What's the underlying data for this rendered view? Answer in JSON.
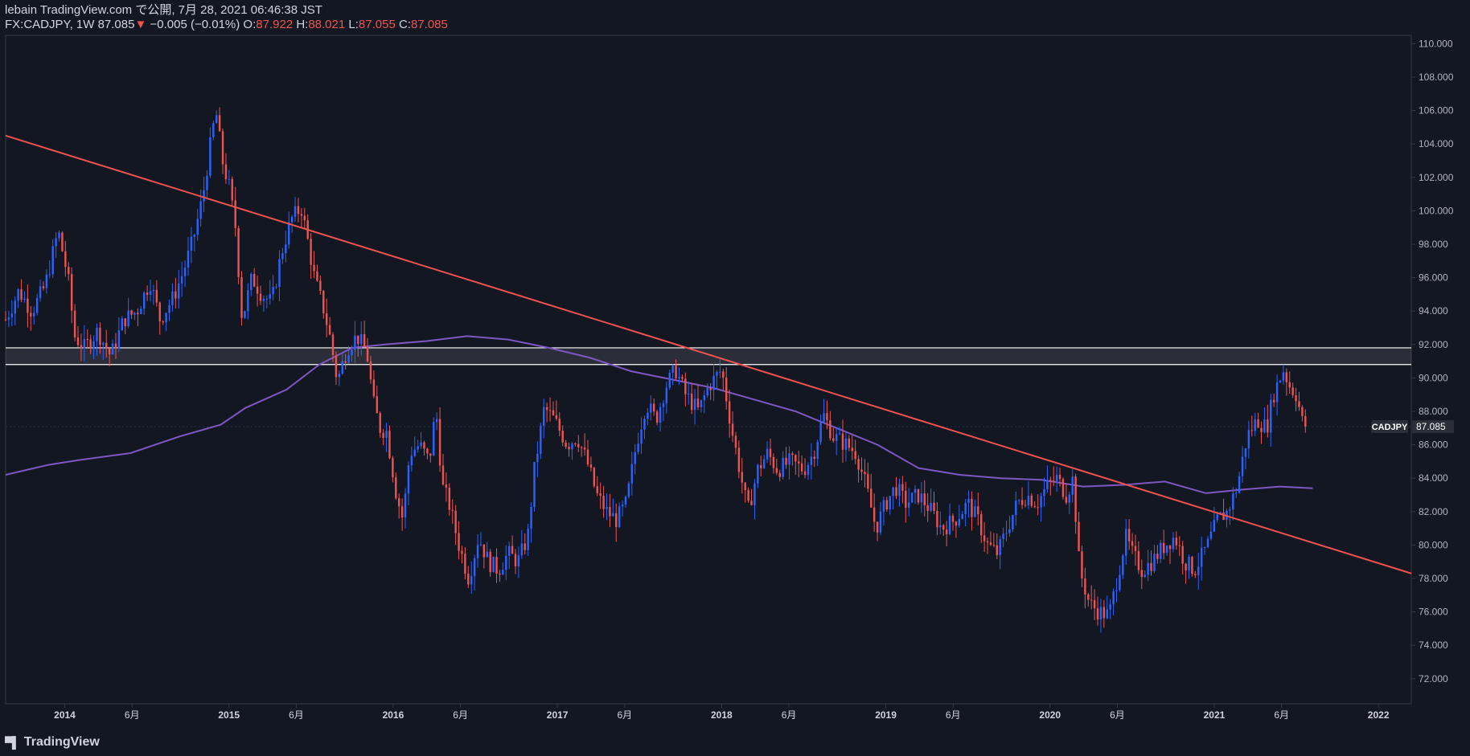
{
  "header": {
    "published": "lebain TradingView.com で公開, 7月 28, 2021 06:46:38 JST",
    "symbol_line": "FX:CADJPY, 1W 87.085",
    "change": "−0.005 (−0.01%)",
    "o_label": "O:",
    "o_value": "87.922",
    "h_label": "H:",
    "h_value": "88.021",
    "l_label": "L:",
    "l_value": "87.055",
    "c_label": "C:",
    "c_value": "87.085"
  },
  "footer": {
    "logo_text": "TradingView"
  },
  "colors": {
    "background": "#131722",
    "up": "#2962ff",
    "down": "#ef5350",
    "trendline": "#f0524f",
    "ma": "#7e57c2",
    "zone": "#ffffff"
  },
  "chart_data": {
    "type": "candlestick",
    "symbol": "CADJPY",
    "last_price_label": "87.085",
    "y_range": [
      70.5,
      110.5
    ],
    "y_ticks": [
      "110.000",
      "108.000",
      "106.000",
      "104.000",
      "102.000",
      "100.000",
      "98.000",
      "96.000",
      "94.000",
      "92.000",
      "90.000",
      "88.000",
      "86.000",
      "84.000",
      "82.000",
      "80.000",
      "78.000",
      "76.000",
      "74.000",
      "72.000"
    ],
    "x_ticks": [
      {
        "label": "2014",
        "t": 2014.0
      },
      {
        "label": "6月",
        "t": 2014.41
      },
      {
        "label": "2015",
        "t": 2015.0
      },
      {
        "label": "6月",
        "t": 2015.41
      },
      {
        "label": "2016",
        "t": 2016.0
      },
      {
        "label": "6月",
        "t": 2016.41
      },
      {
        "label": "2017",
        "t": 2017.0
      },
      {
        "label": "6月",
        "t": 2017.41
      },
      {
        "label": "2018",
        "t": 2018.0
      },
      {
        "label": "6月",
        "t": 2018.41
      },
      {
        "label": "2019",
        "t": 2019.0
      },
      {
        "label": "6月",
        "t": 2019.41
      },
      {
        "label": "2020",
        "t": 2020.0
      },
      {
        "label": "6月",
        "t": 2020.41
      },
      {
        "label": "2021",
        "t": 2021.0
      },
      {
        "label": "6月",
        "t": 2021.41
      },
      {
        "label": "2022",
        "t": 2022.0
      }
    ],
    "x_range": [
      2013.64,
      2022.2
    ],
    "price_path": [
      [
        2013.64,
        93.5
      ],
      [
        2013.72,
        95.2
      ],
      [
        2013.8,
        94.0
      ],
      [
        2013.88,
        95.5
      ],
      [
        2013.96,
        98.8
      ],
      [
        2014.02,
        96.0
      ],
      [
        2014.06,
        92.5
      ],
      [
        2014.12,
        91.8
      ],
      [
        2014.2,
        92.8
      ],
      [
        2014.28,
        91.3
      ],
      [
        2014.36,
        93.5
      ],
      [
        2014.44,
        94.0
      ],
      [
        2014.52,
        95.8
      ],
      [
        2014.58,
        93.5
      ],
      [
        2014.66,
        94.8
      ],
      [
        2014.72,
        96.3
      ],
      [
        2014.78,
        98.2
      ],
      [
        2014.84,
        100.8
      ],
      [
        2014.88,
        103.5
      ],
      [
        2014.92,
        106.0
      ],
      [
        2014.96,
        103.0
      ],
      [
        2015.0,
        101.5
      ],
      [
        2015.04,
        99.0
      ],
      [
        2015.08,
        93.5
      ],
      [
        2015.14,
        96.0
      ],
      [
        2015.2,
        95.0
      ],
      [
        2015.26,
        94.5
      ],
      [
        2015.32,
        97.5
      ],
      [
        2015.38,
        99.5
      ],
      [
        2015.44,
        100.2
      ],
      [
        2015.48,
        98.2
      ],
      [
        2015.52,
        96.0
      ],
      [
        2015.58,
        94.0
      ],
      [
        2015.62,
        92.2
      ],
      [
        2015.66,
        89.8
      ],
      [
        2015.72,
        91.8
      ],
      [
        2015.78,
        92.5
      ],
      [
        2015.84,
        91.5
      ],
      [
        2015.88,
        88.5
      ],
      [
        2015.92,
        87.0
      ],
      [
        2015.96,
        86.8
      ],
      [
        2016.02,
        83.0
      ],
      [
        2016.06,
        81.5
      ],
      [
        2016.1,
        85.5
      ],
      [
        2016.16,
        86.0
      ],
      [
        2016.22,
        85.0
      ],
      [
        2016.26,
        88.2
      ],
      [
        2016.3,
        83.5
      ],
      [
        2016.34,
        82.5
      ],
      [
        2016.4,
        80.0
      ],
      [
        2016.46,
        78.0
      ],
      [
        2016.52,
        80.5
      ],
      [
        2016.58,
        79.0
      ],
      [
        2016.64,
        78.5
      ],
      [
        2016.7,
        79.5
      ],
      [
        2016.76,
        79.0
      ],
      [
        2016.82,
        80.5
      ],
      [
        2016.86,
        84.5
      ],
      [
        2016.92,
        88.2
      ],
      [
        2016.98,
        87.5
      ],
      [
        2017.06,
        86.0
      ],
      [
        2017.12,
        86.5
      ],
      [
        2017.18,
        85.0
      ],
      [
        2017.24,
        83.0
      ],
      [
        2017.3,
        82.0
      ],
      [
        2017.36,
        81.5
      ],
      [
        2017.42,
        82.5
      ],
      [
        2017.48,
        86.0
      ],
      [
        2017.54,
        88.5
      ],
      [
        2017.6,
        87.5
      ],
      [
        2017.66,
        89.5
      ],
      [
        2017.72,
        90.5
      ],
      [
        2017.78,
        89.0
      ],
      [
        2017.86,
        88.0
      ],
      [
        2017.92,
        89.5
      ],
      [
        2018.0,
        90.5
      ],
      [
        2018.06,
        87.0
      ],
      [
        2018.12,
        84.0
      ],
      [
        2018.16,
        82.0
      ],
      [
        2018.22,
        84.5
      ],
      [
        2018.28,
        85.5
      ],
      [
        2018.34,
        84.5
      ],
      [
        2018.42,
        85.0
      ],
      [
        2018.5,
        84.5
      ],
      [
        2018.56,
        85.5
      ],
      [
        2018.62,
        87.8
      ],
      [
        2018.68,
        86.5
      ],
      [
        2018.76,
        86.0
      ],
      [
        2018.82,
        85.5
      ],
      [
        2018.88,
        83.5
      ],
      [
        2018.94,
        81.0
      ],
      [
        2019.0,
        82.5
      ],
      [
        2019.06,
        83.5
      ],
      [
        2019.12,
        82.5
      ],
      [
        2019.2,
        83.0
      ],
      [
        2019.28,
        82.0
      ],
      [
        2019.34,
        81.0
      ],
      [
        2019.42,
        81.5
      ],
      [
        2019.5,
        82.5
      ],
      [
        2019.56,
        81.5
      ],
      [
        2019.62,
        80.0
      ],
      [
        2019.68,
        79.5
      ],
      [
        2019.74,
        81.0
      ],
      [
        2019.8,
        82.5
      ],
      [
        2019.86,
        83.0
      ],
      [
        2019.92,
        82.5
      ],
      [
        2019.98,
        83.5
      ],
      [
        2020.04,
        84.0
      ],
      [
        2020.1,
        83.0
      ],
      [
        2020.14,
        84.0
      ],
      [
        2020.18,
        78.5
      ],
      [
        2020.24,
        76.5
      ],
      [
        2020.3,
        76.0
      ],
      [
        2020.36,
        75.8
      ],
      [
        2020.42,
        78.5
      ],
      [
        2020.46,
        80.5
      ],
      [
        2020.5,
        79.5
      ],
      [
        2020.56,
        78.5
      ],
      [
        2020.62,
        79.0
      ],
      [
        2020.7,
        80.0
      ],
      [
        2020.76,
        80.5
      ],
      [
        2020.82,
        79.0
      ],
      [
        2020.88,
        78.5
      ],
      [
        2020.96,
        80.0
      ],
      [
        2021.02,
        81.5
      ],
      [
        2021.08,
        82.0
      ],
      [
        2021.14,
        83.5
      ],
      [
        2021.2,
        86.5
      ],
      [
        2021.26,
        87.5
      ],
      [
        2021.32,
        87.0
      ],
      [
        2021.36,
        89.0
      ],
      [
        2021.42,
        90.5
      ],
      [
        2021.46,
        89.5
      ],
      [
        2021.5,
        89.0
      ],
      [
        2021.54,
        87.2
      ],
      [
        2021.57,
        87.1
      ]
    ],
    "trendline": [
      [
        2013.64,
        104.5
      ],
      [
        2022.2,
        78.3
      ]
    ],
    "resistance_zone": [
      90.8,
      91.8
    ],
    "moving_average": [
      [
        2013.64,
        84.2
      ],
      [
        2013.9,
        84.8
      ],
      [
        2014.1,
        85.1
      ],
      [
        2014.4,
        85.5
      ],
      [
        2014.7,
        86.5
      ],
      [
        2014.95,
        87.2
      ],
      [
        2015.1,
        88.2
      ],
      [
        2015.35,
        89.3
      ],
      [
        2015.55,
        90.8
      ],
      [
        2015.75,
        91.8
      ],
      [
        2015.95,
        92.0
      ],
      [
        2016.2,
        92.2
      ],
      [
        2016.45,
        92.5
      ],
      [
        2016.7,
        92.3
      ],
      [
        2016.95,
        91.8
      ],
      [
        2017.2,
        91.2
      ],
      [
        2017.45,
        90.4
      ],
      [
        2017.7,
        89.9
      ],
      [
        2017.95,
        89.4
      ],
      [
        2018.2,
        88.7
      ],
      [
        2018.45,
        88.0
      ],
      [
        2018.7,
        87.0
      ],
      [
        2018.95,
        86.0
      ],
      [
        2019.2,
        84.6
      ],
      [
        2019.45,
        84.2
      ],
      [
        2019.7,
        84.0
      ],
      [
        2019.95,
        83.9
      ],
      [
        2020.2,
        83.5
      ],
      [
        2020.45,
        83.6
      ],
      [
        2020.7,
        83.8
      ],
      [
        2020.95,
        83.1
      ],
      [
        2021.15,
        83.3
      ],
      [
        2021.4,
        83.5
      ],
      [
        2021.6,
        83.4
      ]
    ]
  }
}
